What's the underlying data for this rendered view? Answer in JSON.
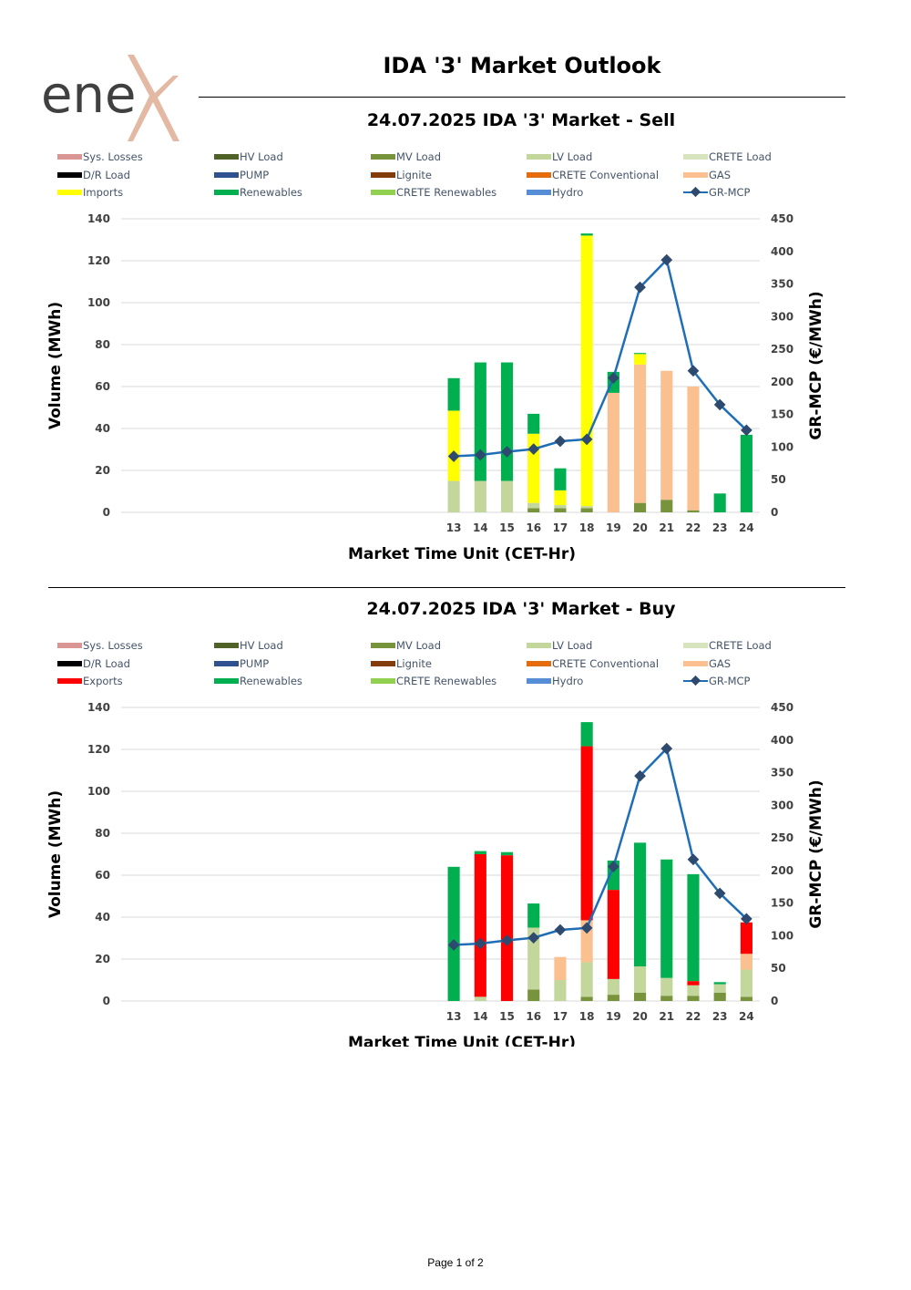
{
  "header": {
    "title": "IDA '3' Market Outlook",
    "logo_text": "enex"
  },
  "footer": {
    "page_label": "Page 1 of 2"
  },
  "colors": {
    "Sys. Losses": "#d99694",
    "HV Load": "#4f6228",
    "MV Load": "#77933c",
    "LV Load": "#c3d69b",
    "CRETE Load": "#d7e4bd",
    "D/R Load": "#000000",
    "PUMP": "#2f528f",
    "Lignite": "#843c0c",
    "CRETE Conventional": "#e46c0a",
    "GAS": "#fac090",
    "Imports": "#ffff00",
    "Exports": "#ff0000",
    "Renewables": "#00b050",
    "CRETE Renewables": "#92d050",
    "Hydro": "#558ed5",
    "GR-MCP": "#1f6eb5",
    "GR-MCP-marker": "#2e4a6e",
    "logo_gray": "#404040",
    "logo_accent": "#e3b9a4"
  },
  "chart_data": [
    {
      "type": "bar",
      "id": "sell",
      "title": "24.07.2025  IDA '3' Market - Sell",
      "xlabel": "Market Time Unit (CET-Hr)",
      "ylabel": "Volume (MWh)",
      "y2label": "GR-MCP (€/MWh)",
      "ylim": [
        0,
        140
      ],
      "y2lim": [
        0,
        450
      ],
      "yticks": [
        "0",
        "20",
        "40",
        "60",
        "80",
        "100",
        "120",
        "140"
      ],
      "y2ticks": [
        "0",
        "50",
        "100",
        "150",
        "200",
        "250",
        "300",
        "350",
        "400",
        "450"
      ],
      "categories": [
        "13",
        "14",
        "15",
        "16",
        "17",
        "18",
        "19",
        "20",
        "21",
        "22",
        "23",
        "24"
      ],
      "legend": [
        "Sys. Losses",
        "HV Load",
        "MV Load",
        "LV Load",
        "CRETE Load",
        "D/R Load",
        "PUMP",
        "Lignite",
        "CRETE Conventional",
        "GAS",
        "Imports",
        "Renewables",
        "CRETE Renewables",
        "Hydro",
        "GR-MCP"
      ],
      "series": [
        {
          "name": "MV Load",
          "values": [
            0,
            0,
            0,
            2,
            2,
            2,
            0,
            4.5,
            6,
            1,
            0,
            0
          ]
        },
        {
          "name": "LV Load",
          "values": [
            15,
            15,
            15,
            2.5,
            1.5,
            1,
            0,
            0,
            0,
            0,
            0,
            0
          ]
        },
        {
          "name": "GAS",
          "values": [
            0,
            0,
            0,
            0,
            0,
            0,
            57,
            66,
            61.5,
            59,
            0,
            0
          ]
        },
        {
          "name": "Imports",
          "values": [
            33.5,
            0,
            0,
            33,
            7,
            129,
            0,
            5,
            0,
            0,
            0,
            0
          ]
        },
        {
          "name": "Renewables",
          "values": [
            15.5,
            56.5,
            56.5,
            9.5,
            10.5,
            1,
            10,
            0.5,
            0,
            0,
            9,
            37
          ]
        }
      ],
      "line": {
        "name": "GR-MCP",
        "values": [
          86,
          88,
          93,
          97,
          109,
          112,
          206,
          345,
          387,
          217,
          165,
          126
        ]
      }
    },
    {
      "type": "bar",
      "id": "buy",
      "title": "24.07.2025  IDA '3' Market - Buy",
      "xlabel": "Market Time Unit (CET-Hr)",
      "ylabel": "Volume (MWh)",
      "y2label": "GR-MCP (€/MWh)",
      "ylim": [
        0,
        140
      ],
      "y2lim": [
        0,
        450
      ],
      "yticks": [
        "0",
        "20",
        "40",
        "60",
        "80",
        "100",
        "120",
        "140"
      ],
      "y2ticks": [
        "0",
        "50",
        "100",
        "150",
        "200",
        "250",
        "300",
        "350",
        "400",
        "450"
      ],
      "categories": [
        "13",
        "14",
        "15",
        "16",
        "17",
        "18",
        "19",
        "20",
        "21",
        "22",
        "23",
        "24"
      ],
      "legend": [
        "Sys. Losses",
        "HV Load",
        "MV Load",
        "LV Load",
        "CRETE Load",
        "D/R Load",
        "PUMP",
        "Lignite",
        "CRETE Conventional",
        "GAS",
        "Exports",
        "Renewables",
        "CRETE Renewables",
        "Hydro",
        "GR-MCP"
      ],
      "series": [
        {
          "name": "MV Load",
          "values": [
            0,
            0,
            0,
            5.5,
            0,
            2,
            3,
            4,
            2.5,
            2.5,
            4,
            2
          ]
        },
        {
          "name": "LV Load",
          "values": [
            0,
            2,
            0,
            29.5,
            10,
            16.5,
            7.5,
            12.5,
            8.5,
            5,
            4,
            13
          ]
        },
        {
          "name": "GAS",
          "values": [
            0,
            0,
            0,
            0,
            11,
            20,
            0,
            0,
            0,
            0,
            0,
            7.5
          ]
        },
        {
          "name": "Exports",
          "values": [
            0,
            68,
            69.5,
            0,
            0,
            83,
            42.5,
            0,
            0,
            2,
            0,
            15
          ]
        },
        {
          "name": "Renewables",
          "values": [
            64,
            1.5,
            1.5,
            11.5,
            0,
            11.5,
            14,
            59,
            56.5,
            51,
            1,
            0
          ]
        }
      ],
      "line": {
        "name": "GR-MCP",
        "values": [
          86,
          88,
          93,
          97,
          109,
          112,
          206,
          345,
          387,
          217,
          165,
          126
        ]
      }
    }
  ]
}
